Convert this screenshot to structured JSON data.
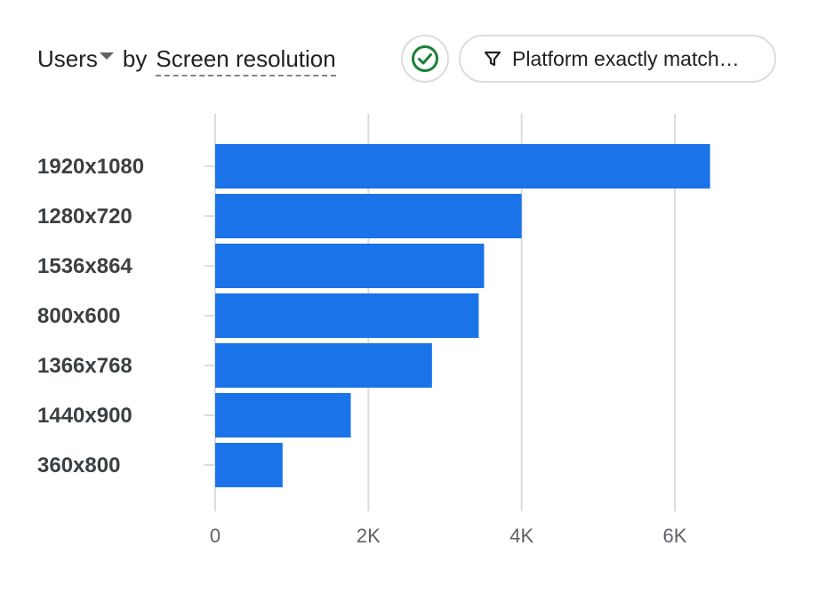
{
  "header": {
    "metric_label": "Users",
    "by_label": "by",
    "dimension_label": "Screen resolution",
    "filter_label": "Platform exactly match…"
  },
  "icons": {
    "metric_dropdown": "caret-down-icon",
    "status": "check-circle-icon",
    "filter": "filter-funnel-icon"
  },
  "colors": {
    "bar": "#1a73e8",
    "check": "#188038",
    "grid": "#dadce0"
  },
  "chart_data": {
    "type": "bar",
    "orientation": "horizontal",
    "title": "",
    "xlabel": "",
    "ylabel": "",
    "categories": [
      "1920x1080",
      "1280x720",
      "1536x864",
      "800x600",
      "1366x768",
      "1440x900",
      "360x800"
    ],
    "values": [
      6460,
      4000,
      3510,
      3440,
      2830,
      1770,
      880
    ],
    "xlim": [
      0,
      7000
    ],
    "x_ticks": [
      0,
      2000,
      4000,
      6000
    ],
    "x_tick_labels": [
      "0",
      "2K",
      "4K",
      "6K"
    ],
    "grid": "vertical",
    "legend": "none"
  }
}
